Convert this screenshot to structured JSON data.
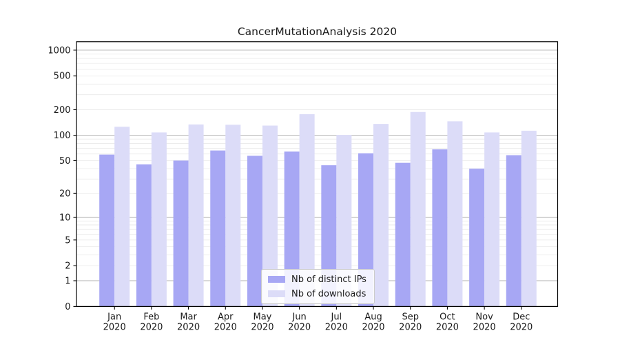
{
  "chart_data": {
    "type": "bar",
    "title": "CancerMutationAnalysis 2020",
    "categories": [
      "Jan",
      "Feb",
      "Mar",
      "Apr",
      "May",
      "Jun",
      "Jul",
      "Aug",
      "Sep",
      "Oct",
      "Nov",
      "Dec"
    ],
    "year_label": "2020",
    "series": [
      {
        "name": "Nb of distinct IPs",
        "color": "#a7a7f4",
        "values": [
          59,
          45,
          50,
          66,
          57,
          64,
          44,
          61,
          47,
          68,
          40,
          58
        ]
      },
      {
        "name": "Nb of downloads",
        "color": "#dcdcf8",
        "values": [
          126,
          108,
          134,
          133,
          130,
          177,
          101,
          136,
          188,
          146,
          108,
          113
        ]
      }
    ],
    "yscale": "log10(1+v)",
    "ylim": [
      0,
      1250
    ],
    "ytick_values": [
      0,
      1,
      2,
      5,
      10,
      20,
      50,
      100,
      200,
      500,
      1000
    ],
    "ytick_labels": [
      "0",
      "1",
      "2",
      "5",
      "10",
      "20",
      "50",
      "100",
      "200",
      "500",
      "1000"
    ],
    "major_grid_values": [
      1,
      10,
      100,
      1000
    ],
    "grid": "on",
    "legend_position": "lower center",
    "colors": {
      "axis": "#000000",
      "text": "#1a1a1a",
      "major_grid": "#b3b3b3",
      "minor_grid": "#e9e9e9"
    }
  }
}
